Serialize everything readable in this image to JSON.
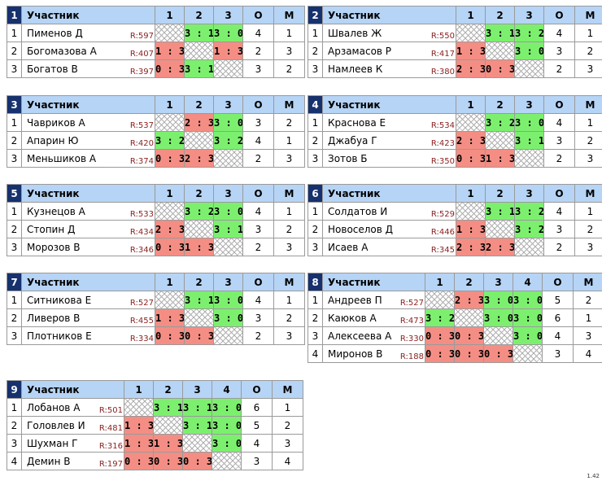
{
  "header_label": "Участник",
  "points_label": "О",
  "place_label": "М",
  "version": "1.42",
  "groups": [
    {
      "num": "1",
      "cols": [
        "1",
        "2",
        "3"
      ],
      "rows": [
        {
          "idx": "1",
          "name": "Пименов Д",
          "rating": "R:597",
          "cells": [
            {
              "t": "",
              "k": "self"
            },
            {
              "t": "3 : 1",
              "k": "win"
            },
            {
              "t": "3 : 0",
              "k": "win"
            }
          ],
          "points": "4",
          "place": "1"
        },
        {
          "idx": "2",
          "name": "Богомазова А",
          "rating": "R:407",
          "cells": [
            {
              "t": "1 : 3",
              "k": "loss"
            },
            {
              "t": "",
              "k": "self"
            },
            {
              "t": "1 : 3",
              "k": "loss"
            }
          ],
          "points": "2",
          "place": "3"
        },
        {
          "idx": "3",
          "name": "Богатов В",
          "rating": "R:397",
          "cells": [
            {
              "t": "0 : 3",
              "k": "loss"
            },
            {
              "t": "3 : 1",
              "k": "win"
            },
            {
              "t": "",
              "k": "self"
            }
          ],
          "points": "3",
          "place": "2"
        }
      ]
    },
    {
      "num": "2",
      "cols": [
        "1",
        "2",
        "3"
      ],
      "rows": [
        {
          "idx": "1",
          "name": "Швалев Ж",
          "rating": "R:550",
          "cells": [
            {
              "t": "",
              "k": "self"
            },
            {
              "t": "3 : 1",
              "k": "win"
            },
            {
              "t": "3 : 2",
              "k": "win"
            }
          ],
          "points": "4",
          "place": "1"
        },
        {
          "idx": "2",
          "name": "Арзамасов Р",
          "rating": "R:417",
          "cells": [
            {
              "t": "1 : 3",
              "k": "loss"
            },
            {
              "t": "",
              "k": "self"
            },
            {
              "t": "3 : 0",
              "k": "win"
            }
          ],
          "points": "3",
          "place": "2"
        },
        {
          "idx": "3",
          "name": "Намлеев К",
          "rating": "R:380",
          "cells": [
            {
              "t": "2 : 3",
              "k": "loss"
            },
            {
              "t": "0 : 3",
              "k": "loss"
            },
            {
              "t": "",
              "k": "self"
            }
          ],
          "points": "2",
          "place": "3"
        }
      ]
    },
    {
      "num": "3",
      "cols": [
        "1",
        "2",
        "3"
      ],
      "rows": [
        {
          "idx": "1",
          "name": "Чавриков А",
          "rating": "R:537",
          "cells": [
            {
              "t": "",
              "k": "self"
            },
            {
              "t": "2 : 3",
              "k": "loss"
            },
            {
              "t": "3 : 0",
              "k": "win"
            }
          ],
          "points": "3",
          "place": "2"
        },
        {
          "idx": "2",
          "name": "Апарин Ю",
          "rating": "R:420",
          "cells": [
            {
              "t": "3 : 2",
              "k": "win"
            },
            {
              "t": "",
              "k": "self"
            },
            {
              "t": "3 : 2",
              "k": "win"
            }
          ],
          "points": "4",
          "place": "1"
        },
        {
          "idx": "3",
          "name": "Меньшиков А",
          "rating": "R:374",
          "cells": [
            {
              "t": "0 : 3",
              "k": "loss"
            },
            {
              "t": "2 : 3",
              "k": "loss"
            },
            {
              "t": "",
              "k": "self"
            }
          ],
          "points": "2",
          "place": "3"
        }
      ]
    },
    {
      "num": "4",
      "cols": [
        "1",
        "2",
        "3"
      ],
      "rows": [
        {
          "idx": "1",
          "name": "Краснова Е",
          "rating": "R:534",
          "cells": [
            {
              "t": "",
              "k": "self"
            },
            {
              "t": "3 : 2",
              "k": "win"
            },
            {
              "t": "3 : 0",
              "k": "win"
            }
          ],
          "points": "4",
          "place": "1"
        },
        {
          "idx": "2",
          "name": "Джабуа Г",
          "rating": "R:423",
          "cells": [
            {
              "t": "2 : 3",
              "k": "loss"
            },
            {
              "t": "",
              "k": "self"
            },
            {
              "t": "3 : 1",
              "k": "win"
            }
          ],
          "points": "3",
          "place": "2"
        },
        {
          "idx": "3",
          "name": "Зотов Б",
          "rating": "R:350",
          "cells": [
            {
              "t": "0 : 3",
              "k": "loss"
            },
            {
              "t": "1 : 3",
              "k": "loss"
            },
            {
              "t": "",
              "k": "self"
            }
          ],
          "points": "2",
          "place": "3"
        }
      ]
    },
    {
      "num": "5",
      "cols": [
        "1",
        "2",
        "3"
      ],
      "rows": [
        {
          "idx": "1",
          "name": "Кузнецов А",
          "rating": "R:533",
          "cells": [
            {
              "t": "",
              "k": "self"
            },
            {
              "t": "3 : 2",
              "k": "win"
            },
            {
              "t": "3 : 0",
              "k": "win"
            }
          ],
          "points": "4",
          "place": "1"
        },
        {
          "idx": "2",
          "name": "Стопин Д",
          "rating": "R:434",
          "cells": [
            {
              "t": "2 : 3",
              "k": "loss"
            },
            {
              "t": "",
              "k": "self"
            },
            {
              "t": "3 : 1",
              "k": "win"
            }
          ],
          "points": "3",
          "place": "2"
        },
        {
          "idx": "3",
          "name": "Морозов В",
          "rating": "R:346",
          "cells": [
            {
              "t": "0 : 3",
              "k": "loss"
            },
            {
              "t": "1 : 3",
              "k": "loss"
            },
            {
              "t": "",
              "k": "self"
            }
          ],
          "points": "2",
          "place": "3"
        }
      ]
    },
    {
      "num": "6",
      "cols": [
        "1",
        "2",
        "3"
      ],
      "rows": [
        {
          "idx": "1",
          "name": "Солдатов И",
          "rating": "R:529",
          "cells": [
            {
              "t": "",
              "k": "self"
            },
            {
              "t": "3 : 1",
              "k": "win"
            },
            {
              "t": "3 : 2",
              "k": "win"
            }
          ],
          "points": "4",
          "place": "1"
        },
        {
          "idx": "2",
          "name": "Новоселов Д",
          "rating": "R:446",
          "cells": [
            {
              "t": "1 : 3",
              "k": "loss"
            },
            {
              "t": "",
              "k": "self"
            },
            {
              "t": "3 : 2",
              "k": "win"
            }
          ],
          "points": "3",
          "place": "2"
        },
        {
          "idx": "3",
          "name": "Исаев А",
          "rating": "R:345",
          "cells": [
            {
              "t": "2 : 3",
              "k": "loss"
            },
            {
              "t": "2 : 3",
              "k": "loss"
            },
            {
              "t": "",
              "k": "self"
            }
          ],
          "points": "2",
          "place": "3"
        }
      ]
    },
    {
      "num": "7",
      "cols": [
        "1",
        "2",
        "3"
      ],
      "rows": [
        {
          "idx": "1",
          "name": "Ситникова Е",
          "rating": "R:527",
          "cells": [
            {
              "t": "",
              "k": "self"
            },
            {
              "t": "3 : 1",
              "k": "win"
            },
            {
              "t": "3 : 0",
              "k": "win"
            }
          ],
          "points": "4",
          "place": "1"
        },
        {
          "idx": "2",
          "name": "Ливеров В",
          "rating": "R:455",
          "cells": [
            {
              "t": "1 : 3",
              "k": "loss"
            },
            {
              "t": "",
              "k": "self"
            },
            {
              "t": "3 : 0",
              "k": "win"
            }
          ],
          "points": "3",
          "place": "2"
        },
        {
          "idx": "3",
          "name": "Плотников Е",
          "rating": "R:334",
          "cells": [
            {
              "t": "0 : 3",
              "k": "loss"
            },
            {
              "t": "0 : 3",
              "k": "loss"
            },
            {
              "t": "",
              "k": "self"
            }
          ],
          "points": "2",
          "place": "3"
        }
      ]
    },
    {
      "num": "8",
      "cols": [
        "1",
        "2",
        "3",
        "4"
      ],
      "rows": [
        {
          "idx": "1",
          "name": "Андреев П",
          "rating": "R:527",
          "cells": [
            {
              "t": "",
              "k": "self"
            },
            {
              "t": "2 : 3",
              "k": "loss"
            },
            {
              "t": "3 : 0",
              "k": "win"
            },
            {
              "t": "3 : 0",
              "k": "win"
            }
          ],
          "points": "5",
          "place": "2"
        },
        {
          "idx": "2",
          "name": "Каюков А",
          "rating": "R:473",
          "cells": [
            {
              "t": "3 : 2",
              "k": "win"
            },
            {
              "t": "",
              "k": "self"
            },
            {
              "t": "3 : 0",
              "k": "win"
            },
            {
              "t": "3 : 0",
              "k": "win"
            }
          ],
          "points": "6",
          "place": "1"
        },
        {
          "idx": "3",
          "name": "Алексеева А",
          "rating": "R:330",
          "cells": [
            {
              "t": "0 : 3",
              "k": "loss"
            },
            {
              "t": "0 : 3",
              "k": "loss"
            },
            {
              "t": "",
              "k": "self"
            },
            {
              "t": "3 : 0",
              "k": "win"
            }
          ],
          "points": "4",
          "place": "3"
        },
        {
          "idx": "4",
          "name": "Миронов В",
          "rating": "R:188",
          "cells": [
            {
              "t": "0 : 3",
              "k": "loss"
            },
            {
              "t": "0 : 3",
              "k": "loss"
            },
            {
              "t": "0 : 3",
              "k": "loss"
            },
            {
              "t": "",
              "k": "self"
            }
          ],
          "points": "3",
          "place": "4"
        }
      ]
    },
    {
      "num": "9",
      "cols": [
        "1",
        "2",
        "3",
        "4"
      ],
      "rows": [
        {
          "idx": "1",
          "name": "Лобанов А",
          "rating": "R:501",
          "cells": [
            {
              "t": "",
              "k": "self"
            },
            {
              "t": "3 : 1",
              "k": "win"
            },
            {
              "t": "3 : 1",
              "k": "win"
            },
            {
              "t": "3 : 0",
              "k": "win"
            }
          ],
          "points": "6",
          "place": "1"
        },
        {
          "idx": "2",
          "name": "Головлев И",
          "rating": "R:481",
          "cells": [
            {
              "t": "1 : 3",
              "k": "loss"
            },
            {
              "t": "",
              "k": "self"
            },
            {
              "t": "3 : 1",
              "k": "win"
            },
            {
              "t": "3 : 0",
              "k": "win"
            }
          ],
          "points": "5",
          "place": "2"
        },
        {
          "idx": "3",
          "name": "Шухман Г",
          "rating": "R:316",
          "cells": [
            {
              "t": "1 : 3",
              "k": "loss"
            },
            {
              "t": "1 : 3",
              "k": "loss"
            },
            {
              "t": "",
              "k": "self"
            },
            {
              "t": "3 : 0",
              "k": "win"
            }
          ],
          "points": "4",
          "place": "3"
        },
        {
          "idx": "4",
          "name": "Демин В",
          "rating": "R:197",
          "cells": [
            {
              "t": "0 : 3",
              "k": "loss"
            },
            {
              "t": "0 : 3",
              "k": "loss"
            },
            {
              "t": "0 : 3",
              "k": "loss"
            },
            {
              "t": "",
              "k": "self"
            }
          ],
          "points": "3",
          "place": "4"
        }
      ]
    }
  ]
}
